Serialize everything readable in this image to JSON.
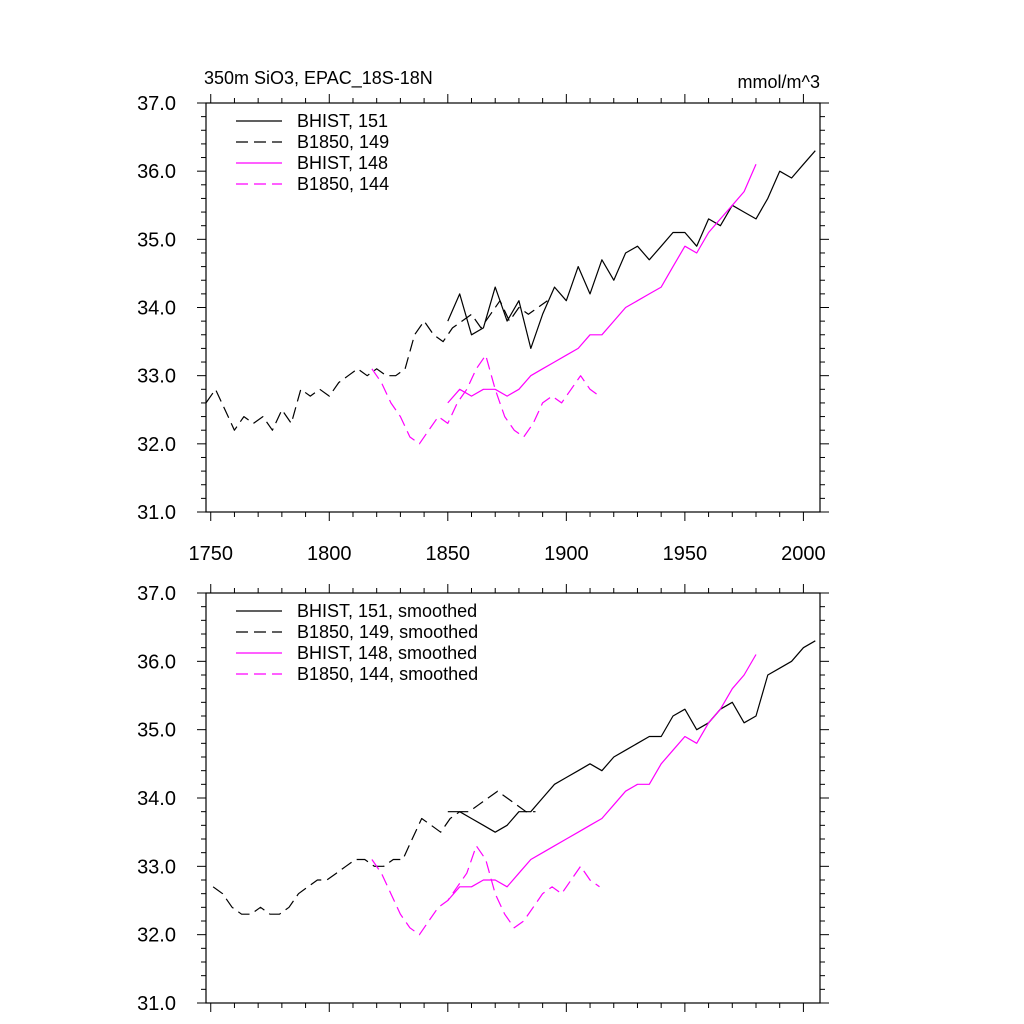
{
  "colors": {
    "black": "#000000",
    "magenta": "#ff00ff"
  },
  "chart_data": [
    {
      "type": "line",
      "title": "350m SiO3, EPAC_18S-18N",
      "units": "mmol/m^3",
      "xlim": [
        1748,
        2007
      ],
      "ylim": [
        31.0,
        37.0
      ],
      "x_ticks": [
        1750,
        1800,
        1850,
        1900,
        1950,
        2000
      ],
      "x_tick_labels": [
        "1750",
        "1800",
        "1850",
        "1900",
        "1950",
        "2000"
      ],
      "y_ticks": [
        31.0,
        32.0,
        33.0,
        34.0,
        35.0,
        36.0,
        37.0
      ],
      "y_tick_labels": [
        "31.0",
        "32.0",
        "33.0",
        "34.0",
        "35.0",
        "36.0",
        "37.0"
      ],
      "legend_position": "top-left",
      "series": [
        {
          "name": "BHIST, 151",
          "color": "#000000",
          "dash": "solid",
          "x": [
            1850,
            1855,
            1860,
            1865,
            1870,
            1875,
            1880,
            1885,
            1890,
            1895,
            1900,
            1905,
            1910,
            1915,
            1920,
            1925,
            1930,
            1935,
            1940,
            1945,
            1950,
            1955,
            1960,
            1965,
            1970,
            1975,
            1980,
            1985,
            1990,
            1995,
            2000,
            2005
          ],
          "y": [
            33.8,
            34.2,
            33.6,
            33.7,
            34.3,
            33.8,
            34.1,
            33.4,
            33.9,
            34.3,
            34.1,
            34.6,
            34.2,
            34.7,
            34.4,
            34.8,
            34.9,
            34.7,
            34.9,
            35.1,
            35.1,
            34.9,
            35.3,
            35.2,
            35.5,
            35.4,
            35.3,
            35.6,
            36.0,
            35.9,
            36.1,
            36.3
          ]
        },
        {
          "name": "B1850, 149",
          "color": "#000000",
          "dash": "dashed",
          "x": [
            1748,
            1752,
            1756,
            1760,
            1764,
            1768,
            1772,
            1776,
            1780,
            1784,
            1788,
            1792,
            1796,
            1800,
            1804,
            1808,
            1812,
            1816,
            1820,
            1824,
            1828,
            1832,
            1836,
            1840,
            1844,
            1848,
            1852,
            1856,
            1860,
            1864,
            1868,
            1872,
            1876,
            1880,
            1884,
            1888,
            1892
          ],
          "y": [
            32.6,
            32.8,
            32.5,
            32.2,
            32.4,
            32.3,
            32.4,
            32.2,
            32.5,
            32.3,
            32.8,
            32.7,
            32.8,
            32.7,
            32.9,
            33.0,
            33.1,
            33.0,
            33.1,
            33.0,
            33.0,
            33.1,
            33.6,
            33.8,
            33.6,
            33.5,
            33.7,
            33.8,
            33.9,
            33.7,
            33.9,
            34.1,
            33.8,
            34.0,
            33.9,
            34.0,
            34.1
          ]
        },
        {
          "name": "BHIST, 148",
          "color": "#ff00ff",
          "dash": "solid",
          "x": [
            1850,
            1855,
            1860,
            1865,
            1870,
            1875,
            1880,
            1885,
            1890,
            1895,
            1900,
            1905,
            1910,
            1915,
            1920,
            1925,
            1930,
            1935,
            1940,
            1945,
            1950,
            1955,
            1960,
            1965,
            1970,
            1975,
            1980
          ],
          "y": [
            32.6,
            32.8,
            32.7,
            32.8,
            32.8,
            32.7,
            32.8,
            33.0,
            33.1,
            33.2,
            33.3,
            33.4,
            33.6,
            33.6,
            33.8,
            34.0,
            34.1,
            34.2,
            34.3,
            34.6,
            34.9,
            34.8,
            35.1,
            35.3,
            35.5,
            35.7,
            36.1
          ]
        },
        {
          "name": "B1850, 144",
          "color": "#ff00ff",
          "dash": "dashed",
          "x": [
            1818,
            1822,
            1826,
            1830,
            1834,
            1838,
            1842,
            1846,
            1850,
            1854,
            1858,
            1862,
            1866,
            1870,
            1874,
            1878,
            1882,
            1886,
            1890,
            1894,
            1898,
            1902,
            1906,
            1910,
            1914
          ],
          "y": [
            33.1,
            32.9,
            32.6,
            32.4,
            32.1,
            32.0,
            32.2,
            32.4,
            32.3,
            32.6,
            32.8,
            33.1,
            33.3,
            32.8,
            32.4,
            32.2,
            32.1,
            32.3,
            32.6,
            32.7,
            32.6,
            32.8,
            33.0,
            32.8,
            32.7
          ]
        }
      ]
    },
    {
      "type": "line",
      "xlim": [
        1748,
        2007
      ],
      "ylim": [
        31.0,
        37.0
      ],
      "y_ticks": [
        31.0,
        32.0,
        33.0,
        34.0,
        35.0,
        36.0,
        37.0
      ],
      "y_tick_labels": [
        "31.0",
        "32.0",
        "33.0",
        "34.0",
        "35.0",
        "36.0",
        "37.0"
      ],
      "legend_position": "top-left",
      "series": [
        {
          "name": "BHIST, 151, smoothed",
          "color": "#000000",
          "dash": "solid",
          "x": [
            1850,
            1855,
            1860,
            1865,
            1870,
            1875,
            1880,
            1885,
            1890,
            1895,
            1900,
            1905,
            1910,
            1915,
            1920,
            1925,
            1930,
            1935,
            1940,
            1945,
            1950,
            1955,
            1960,
            1965,
            1970,
            1975,
            1980,
            1985,
            1990,
            1995,
            2000,
            2005
          ],
          "y": [
            33.8,
            33.8,
            33.7,
            33.6,
            33.5,
            33.6,
            33.8,
            33.8,
            34.0,
            34.2,
            34.3,
            34.4,
            34.5,
            34.4,
            34.6,
            34.7,
            34.8,
            34.9,
            34.9,
            35.2,
            35.3,
            35.0,
            35.1,
            35.3,
            35.4,
            35.1,
            35.2,
            35.8,
            35.9,
            36.0,
            36.2,
            36.3
          ]
        },
        {
          "name": "B1850, 149, smoothed",
          "color": "#000000",
          "dash": "dashed",
          "x": [
            1751,
            1755,
            1759,
            1763,
            1767,
            1771,
            1775,
            1779,
            1783,
            1787,
            1791,
            1795,
            1799,
            1803,
            1807,
            1811,
            1815,
            1819,
            1823,
            1827,
            1831,
            1835,
            1839,
            1843,
            1847,
            1851,
            1855,
            1859,
            1863,
            1867,
            1871,
            1875,
            1879,
            1883,
            1887
          ],
          "y": [
            32.7,
            32.6,
            32.4,
            32.3,
            32.3,
            32.4,
            32.3,
            32.3,
            32.4,
            32.6,
            32.7,
            32.8,
            32.8,
            32.9,
            33.0,
            33.1,
            33.1,
            33.0,
            33.0,
            33.1,
            33.1,
            33.4,
            33.7,
            33.6,
            33.5,
            33.7,
            33.8,
            33.8,
            33.9,
            34.0,
            34.1,
            34.0,
            33.9,
            33.8,
            33.8
          ]
        },
        {
          "name": "BHIST, 148, smoothed",
          "color": "#ff00ff",
          "dash": "solid",
          "x": [
            1850,
            1855,
            1860,
            1865,
            1870,
            1875,
            1880,
            1885,
            1890,
            1895,
            1900,
            1905,
            1910,
            1915,
            1920,
            1925,
            1930,
            1935,
            1940,
            1945,
            1950,
            1955,
            1960,
            1965,
            1970,
            1975,
            1980
          ],
          "y": [
            32.5,
            32.7,
            32.7,
            32.8,
            32.8,
            32.7,
            32.9,
            33.1,
            33.2,
            33.3,
            33.4,
            33.5,
            33.6,
            33.7,
            33.9,
            34.1,
            34.2,
            34.2,
            34.5,
            34.7,
            34.9,
            34.8,
            35.1,
            35.3,
            35.6,
            35.8,
            36.1
          ]
        },
        {
          "name": "B1850, 144, smoothed",
          "color": "#ff00ff",
          "dash": "dashed",
          "x": [
            1818,
            1822,
            1826,
            1830,
            1834,
            1838,
            1842,
            1846,
            1850,
            1854,
            1858,
            1862,
            1866,
            1870,
            1874,
            1878,
            1882,
            1886,
            1890,
            1894,
            1898,
            1902,
            1906,
            1910,
            1914
          ],
          "y": [
            33.1,
            32.9,
            32.6,
            32.3,
            32.1,
            32.0,
            32.2,
            32.4,
            32.5,
            32.7,
            32.9,
            33.3,
            33.1,
            32.6,
            32.3,
            32.1,
            32.2,
            32.4,
            32.6,
            32.7,
            32.6,
            32.8,
            33.0,
            32.8,
            32.7
          ]
        }
      ]
    }
  ]
}
